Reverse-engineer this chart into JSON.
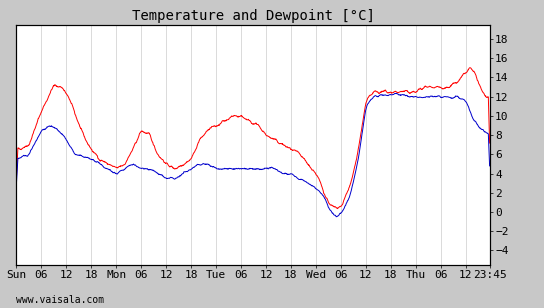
{
  "title": "Temperature and Dewpoint [°C]",
  "ylabel_right_ticks": [
    -4,
    -2,
    0,
    2,
    4,
    6,
    8,
    10,
    12,
    14,
    16,
    18
  ],
  "ylim": [
    -5.5,
    19.5
  ],
  "background_color": "#ffffff",
  "plot_bg_color": "#ffffff",
  "outer_bg_color": "#c8c8c8",
  "grid_color": "#cccccc",
  "temp_color": "#ff0000",
  "dew_color": "#0000cc",
  "watermark": "www.vaisala.com",
  "title_fontsize": 10,
  "tick_fontsize": 8,
  "watermark_fontsize": 7,
  "x_tick_labels": [
    "Sun",
    "06",
    "12",
    "18",
    "Mon",
    "06",
    "12",
    "18",
    "Tue",
    "06",
    "12",
    "18",
    "Wed",
    "06",
    "12",
    "18",
    "Thu",
    "06",
    "12",
    "23:45"
  ],
  "x_tick_positions": [
    0,
    6,
    12,
    18,
    24,
    30,
    36,
    42,
    48,
    54,
    60,
    66,
    72,
    78,
    84,
    90,
    96,
    102,
    108,
    113.75
  ],
  "total_hours": 113.75,
  "temp_points_x": [
    0,
    3,
    6,
    9,
    11,
    13,
    16,
    18,
    20,
    22,
    24,
    26,
    28,
    30,
    32,
    34,
    36,
    38,
    40,
    42,
    44,
    46,
    48,
    50,
    52,
    54,
    56,
    58,
    60,
    62,
    64,
    66,
    68,
    70,
    72,
    73,
    74,
    75,
    76,
    77,
    78,
    80,
    82,
    84,
    86,
    88,
    90,
    92,
    94,
    96,
    98,
    100,
    102,
    104,
    106,
    108,
    109,
    110,
    111,
    112,
    113.75
  ],
  "temp_points_y": [
    6.5,
    7.0,
    10.5,
    13.2,
    13.0,
    11.5,
    8.0,
    6.5,
    5.5,
    5.0,
    4.5,
    5.0,
    6.5,
    8.5,
    8.0,
    6.0,
    5.0,
    4.5,
    5.0,
    5.5,
    7.5,
    8.5,
    9.0,
    9.5,
    10.0,
    10.0,
    9.5,
    9.0,
    8.0,
    7.5,
    7.0,
    6.5,
    6.0,
    5.0,
    4.0,
    3.0,
    2.0,
    1.0,
    0.5,
    0.3,
    0.5,
    2.5,
    6.0,
    11.5,
    12.5,
    12.5,
    12.5,
    12.5,
    12.5,
    12.5,
    13.0,
    13.0,
    13.0,
    13.0,
    13.5,
    14.5,
    15.0,
    14.5,
    13.5,
    12.5,
    11.5
  ],
  "dew_points_x": [
    0,
    3,
    6,
    8,
    10,
    12,
    14,
    18,
    20,
    22,
    24,
    26,
    28,
    30,
    32,
    34,
    36,
    38,
    40,
    42,
    44,
    46,
    48,
    50,
    52,
    54,
    56,
    58,
    60,
    62,
    64,
    66,
    68,
    70,
    72,
    73,
    74,
    75,
    76,
    77,
    78,
    80,
    82,
    84,
    86,
    88,
    90,
    92,
    94,
    96,
    98,
    100,
    102,
    104,
    106,
    108,
    109,
    110,
    111,
    112,
    113.75
  ],
  "dew_points_y": [
    5.5,
    6.0,
    8.5,
    9.0,
    8.5,
    7.5,
    6.0,
    5.5,
    5.0,
    4.5,
    4.0,
    4.5,
    5.0,
    4.5,
    4.5,
    4.0,
    3.5,
    3.5,
    4.0,
    4.5,
    5.0,
    5.0,
    4.5,
    4.5,
    4.5,
    4.5,
    4.5,
    4.5,
    4.5,
    4.5,
    4.0,
    4.0,
    3.5,
    3.0,
    2.5,
    2.0,
    1.5,
    0.5,
    -0.2,
    -0.5,
    -0.2,
    1.5,
    5.0,
    11.0,
    12.0,
    12.2,
    12.2,
    12.2,
    12.0,
    12.0,
    12.0,
    12.0,
    12.0,
    12.0,
    12.0,
    11.5,
    10.5,
    9.5,
    9.0,
    8.5,
    8.0
  ]
}
